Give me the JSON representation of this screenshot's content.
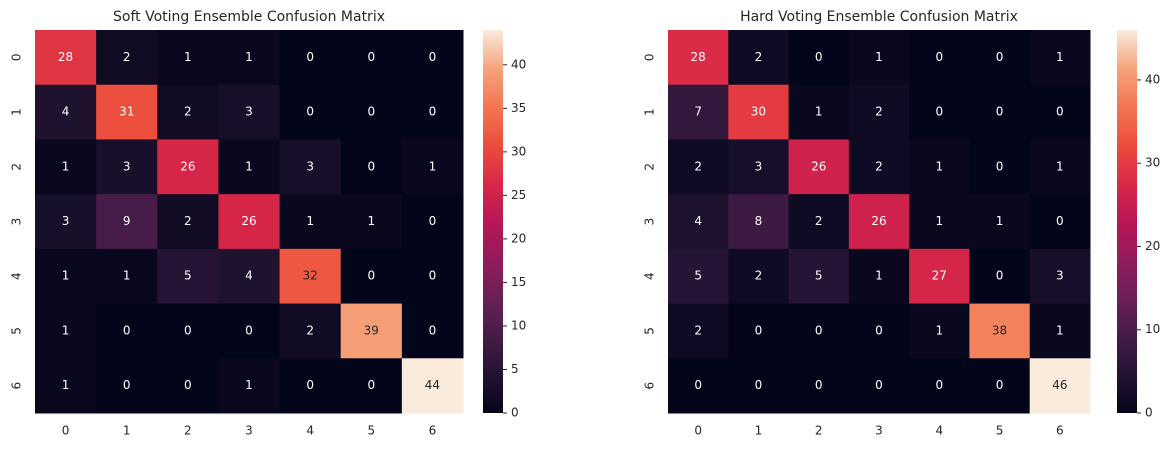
{
  "chart_data": [
    {
      "type": "heatmap",
      "title": "Soft Voting Ensemble Confusion Matrix",
      "x_categories": [
        "0",
        "1",
        "2",
        "3",
        "4",
        "5",
        "6"
      ],
      "y_categories": [
        "0",
        "1",
        "2",
        "3",
        "4",
        "5",
        "6"
      ],
      "values": [
        [
          28,
          2,
          1,
          1,
          0,
          0,
          0
        ],
        [
          4,
          31,
          2,
          3,
          0,
          0,
          0
        ],
        [
          1,
          3,
          26,
          1,
          3,
          0,
          1
        ],
        [
          3,
          9,
          2,
          26,
          1,
          1,
          0
        ],
        [
          1,
          1,
          5,
          4,
          32,
          0,
          0
        ],
        [
          1,
          0,
          0,
          0,
          2,
          39,
          0
        ],
        [
          1,
          0,
          0,
          1,
          0,
          0,
          44
        ]
      ],
      "cmap": "rocket",
      "clim": [
        0,
        44
      ],
      "cticks": [
        0,
        5,
        10,
        15,
        20,
        25,
        30,
        35,
        40
      ]
    },
    {
      "type": "heatmap",
      "title": "Hard Voting Ensemble Confusion Matrix",
      "x_categories": [
        "0",
        "1",
        "2",
        "3",
        "4",
        "5",
        "6"
      ],
      "y_categories": [
        "0",
        "1",
        "2",
        "3",
        "4",
        "5",
        "6"
      ],
      "values": [
        [
          28,
          2,
          0,
          1,
          0,
          0,
          1
        ],
        [
          7,
          30,
          1,
          2,
          0,
          0,
          0
        ],
        [
          2,
          3,
          26,
          2,
          1,
          0,
          1
        ],
        [
          4,
          8,
          2,
          26,
          1,
          1,
          0
        ],
        [
          5,
          2,
          5,
          1,
          27,
          0,
          3
        ],
        [
          2,
          0,
          0,
          0,
          1,
          38,
          1
        ],
        [
          0,
          0,
          0,
          0,
          0,
          0,
          46
        ]
      ],
      "cmap": "rocket",
      "clim": [
        0,
        46
      ],
      "cticks": [
        0,
        10,
        20,
        30,
        40
      ]
    }
  ]
}
